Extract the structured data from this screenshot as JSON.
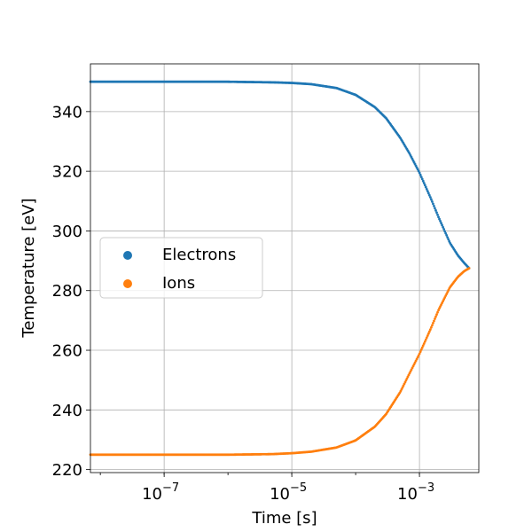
{
  "chart_data": {
    "type": "scatter",
    "title": "",
    "xlabel": "Time [s]",
    "ylabel": "Temperature [eV]",
    "xscale": "log",
    "xlim": [
      7e-09,
      0.0085
    ],
    "ylim": [
      219,
      356
    ],
    "grid": true,
    "legend_position": "center-left",
    "x_ticks": [
      {
        "value": 1e-07,
        "base": "10",
        "exp": "−7"
      },
      {
        "value": 1e-05,
        "base": "10",
        "exp": "−5"
      },
      {
        "value": 0.001,
        "base": "10",
        "exp": "−3"
      }
    ],
    "y_ticks": [
      220,
      240,
      260,
      280,
      300,
      320,
      340
    ],
    "series": [
      {
        "name": "Electrons",
        "color": "#1f77b4",
        "x": [
          7e-09,
          1e-08,
          1e-07,
          1e-06,
          5e-06,
          1e-05,
          2e-05,
          5e-05,
          0.0001,
          0.0002,
          0.0003,
          0.0005,
          0.0007,
          0.001,
          0.0015,
          0.002,
          0.003,
          0.004,
          0.005,
          0.006
        ],
        "y": [
          350,
          350,
          350,
          350,
          349.8,
          349.6,
          349.2,
          347.9,
          345.6,
          341.5,
          337.8,
          331.2,
          325.9,
          319.5,
          311,
          304.5,
          296,
          291.8,
          289.3,
          287.5
        ]
      },
      {
        "name": "Ions",
        "color": "#ff7f0e",
        "x": [
          7e-09,
          1e-08,
          1e-07,
          1e-06,
          5e-06,
          1e-05,
          2e-05,
          5e-05,
          0.0001,
          0.0002,
          0.0003,
          0.0005,
          0.0007,
          0.001,
          0.0015,
          0.002,
          0.003,
          0.004,
          0.005,
          0.006
        ],
        "y": [
          225,
          225,
          225,
          225,
          225.2,
          225.5,
          226,
          227.4,
          229.8,
          234.4,
          238.6,
          246,
          252.3,
          258.8,
          267.2,
          273.6,
          281.1,
          284.6,
          286.5,
          287.5
        ]
      }
    ]
  }
}
